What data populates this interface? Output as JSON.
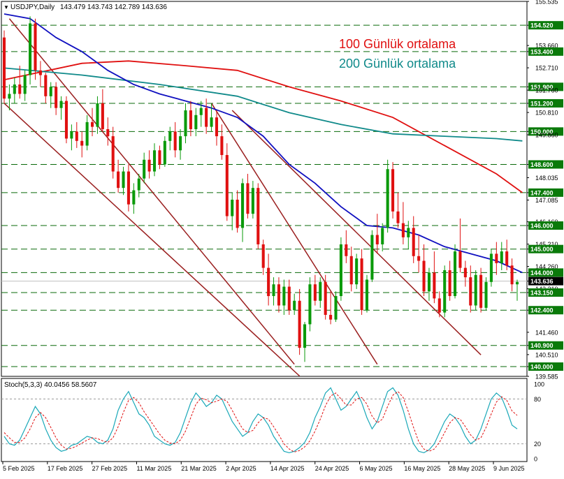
{
  "symbol_header": {
    "arrow": "▼",
    "symbol": "USDJPY,Daily",
    "ohlc": "143.479 143.743 142.789 143.636"
  },
  "legend": {
    "ma100_label": "100 Günlük ortalama",
    "ma200_label": "200 Günlük ortalama",
    "ma100_color": "#e01010",
    "ma200_color": "#108a8a"
  },
  "stoch_header": "Stoch(5,3,3) 40.0456 58.5607",
  "colors": {
    "bull": "#0a9a0a",
    "bear": "#e01010",
    "ma50": "#1010c0",
    "ma100": "#e01010",
    "ma200": "#108a8a",
    "channel": "#9a1f1f",
    "level_line": "#0a6a0a",
    "stoch_main": "#1aa8b8",
    "stoch_signal": "#e01010",
    "price_tag_bg": "#000000"
  },
  "chart_data": {
    "type": "candlestick",
    "symbol": "USDJPY",
    "timeframe": "Daily",
    "ylim": [
      139.585,
      155.535
    ],
    "y_tick_labels": [
      "155.535",
      "154.520",
      "153.660",
      "153.400",
      "152.710",
      "151.900",
      "151.760",
      "151.200",
      "150.810",
      "150.000",
      "149.860",
      "148.600",
      "148.035",
      "147.400",
      "147.085",
      "146.160",
      "146.000",
      "145.210",
      "145.000",
      "144.260",
      "144.000",
      "143.636",
      "143.310",
      "143.150",
      "142.400",
      "141.460",
      "140.900",
      "140.510",
      "140.000",
      "139.585"
    ],
    "x_tick_labels": [
      "5 Feb 2025",
      "17 Feb 2025",
      "27 Feb 2025",
      "11 Mar 2025",
      "21 Mar 2025",
      "2 Apr 2025",
      "14 Apr 2025",
      "24 Apr 2025",
      "6 May 2025",
      "16 May 2025",
      "28 May 2025",
      "9 Jun 2025"
    ],
    "horizontal_levels": [
      154.52,
      153.4,
      151.9,
      151.2,
      150.0,
      148.6,
      147.4,
      146.0,
      145.0,
      144.0,
      143.15,
      142.4,
      140.9,
      140.0
    ],
    "current_price": 143.636,
    "candles": [
      [
        154.0,
        154.3,
        151.2,
        151.4
      ],
      [
        151.4,
        152.0,
        150.9,
        151.6
      ],
      [
        151.6,
        152.3,
        151.2,
        152.0
      ],
      [
        152.0,
        152.8,
        151.4,
        151.6
      ],
      [
        151.6,
        152.6,
        151.3,
        152.4
      ],
      [
        152.4,
        154.9,
        152.0,
        154.6
      ],
      [
        154.6,
        154.8,
        152.2,
        152.6
      ],
      [
        152.6,
        153.0,
        151.9,
        152.4
      ],
      [
        152.4,
        152.5,
        151.2,
        151.5
      ],
      [
        151.5,
        152.1,
        151.0,
        151.9
      ],
      [
        151.9,
        152.1,
        150.7,
        151.0
      ],
      [
        151.0,
        151.5,
        150.5,
        151.3
      ],
      [
        151.3,
        151.5,
        149.5,
        149.7
      ],
      [
        149.7,
        150.3,
        149.2,
        150.0
      ],
      [
        150.0,
        150.4,
        149.3,
        149.6
      ],
      [
        149.6,
        150.0,
        148.9,
        149.4
      ],
      [
        149.4,
        150.7,
        149.2,
        150.4
      ],
      [
        150.4,
        151.0,
        149.8,
        150.2
      ],
      [
        150.2,
        151.5,
        149.9,
        151.2
      ],
      [
        151.2,
        151.8,
        150.0,
        150.1
      ],
      [
        150.1,
        150.6,
        149.4,
        149.8
      ],
      [
        149.8,
        150.2,
        148.0,
        148.3
      ],
      [
        148.3,
        148.8,
        147.4,
        147.6
      ],
      [
        147.6,
        148.5,
        147.3,
        148.3
      ],
      [
        148.3,
        148.6,
        146.6,
        146.9
      ],
      [
        146.9,
        147.8,
        146.5,
        147.5
      ],
      [
        147.5,
        148.2,
        147.2,
        148.0
      ],
      [
        148.0,
        149.1,
        147.8,
        148.8
      ],
      [
        148.8,
        149.2,
        148.0,
        148.3
      ],
      [
        148.3,
        149.5,
        148.1,
        149.2
      ],
      [
        149.2,
        149.4,
        148.4,
        148.6
      ],
      [
        148.6,
        149.8,
        148.5,
        149.6
      ],
      [
        149.6,
        150.2,
        149.2,
        150.0
      ],
      [
        150.0,
        150.4,
        148.9,
        149.2
      ],
      [
        149.2,
        150.1,
        148.8,
        149.8
      ],
      [
        149.8,
        151.2,
        149.5,
        150.9
      ],
      [
        150.9,
        151.3,
        149.8,
        150.1
      ],
      [
        150.1,
        151.0,
        149.8,
        150.7
      ],
      [
        150.7,
        151.3,
        150.2,
        151.0
      ],
      [
        151.0,
        151.4,
        149.9,
        150.2
      ],
      [
        150.2,
        151.2,
        150.0,
        150.6
      ],
      [
        150.6,
        150.9,
        149.4,
        149.8
      ],
      [
        149.8,
        150.3,
        148.8,
        149.0
      ],
      [
        149.0,
        149.5,
        146.2,
        146.4
      ],
      [
        146.4,
        147.4,
        145.8,
        147.1
      ],
      [
        147.1,
        147.5,
        145.7,
        145.9
      ],
      [
        145.9,
        148.0,
        145.3,
        147.8
      ],
      [
        147.8,
        148.2,
        146.3,
        146.5
      ],
      [
        146.5,
        147.9,
        146.3,
        147.6
      ],
      [
        147.6,
        147.8,
        145.0,
        145.2
      ],
      [
        145.2,
        145.4,
        143.9,
        144.2
      ],
      [
        144.2,
        144.8,
        142.6,
        143.0
      ],
      [
        143.0,
        143.8,
        142.6,
        143.5
      ],
      [
        143.5,
        143.8,
        142.3,
        142.6
      ],
      [
        142.6,
        143.7,
        142.2,
        143.4
      ],
      [
        143.4,
        143.7,
        142.2,
        142.4
      ],
      [
        142.4,
        143.1,
        142.2,
        142.8
      ],
      [
        142.8,
        143.3,
        140.5,
        140.8
      ],
      [
        140.8,
        141.9,
        140.2,
        141.8
      ],
      [
        141.8,
        143.8,
        141.5,
        143.5
      ],
      [
        143.5,
        143.9,
        142.6,
        142.8
      ],
      [
        142.8,
        143.8,
        142.5,
        143.6
      ],
      [
        143.6,
        143.9,
        142.0,
        142.2
      ],
      [
        142.2,
        143.2,
        141.8,
        142.0
      ],
      [
        142.0,
        143.2,
        141.9,
        143.0
      ],
      [
        143.0,
        145.5,
        142.8,
        145.2
      ],
      [
        145.2,
        145.8,
        144.4,
        144.7
      ],
      [
        144.7,
        145.1,
        143.2,
        143.5
      ],
      [
        143.5,
        144.8,
        143.3,
        144.6
      ],
      [
        144.6,
        145.0,
        142.2,
        142.4
      ],
      [
        142.4,
        143.9,
        142.3,
        143.7
      ],
      [
        143.7,
        145.8,
        143.6,
        145.6
      ],
      [
        145.6,
        146.5,
        144.8,
        145.2
      ],
      [
        145.2,
        146.1,
        144.9,
        145.9
      ],
      [
        145.9,
        148.8,
        145.7,
        148.4
      ],
      [
        148.4,
        148.7,
        146.3,
        146.6
      ],
      [
        146.6,
        147.4,
        145.9,
        146.1
      ],
      [
        146.1,
        147.0,
        145.2,
        145.5
      ],
      [
        145.5,
        146.2,
        145.0,
        145.9
      ],
      [
        145.9,
        146.4,
        144.4,
        144.7
      ],
      [
        144.7,
        145.6,
        144.0,
        144.5
      ],
      [
        144.5,
        145.2,
        143.0,
        143.2
      ],
      [
        143.2,
        144.2,
        142.8,
        144.0
      ],
      [
        144.0,
        144.9,
        142.7,
        142.9
      ],
      [
        142.9,
        143.2,
        142.1,
        142.3
      ],
      [
        142.3,
        144.3,
        142.1,
        144.1
      ],
      [
        144.1,
        144.5,
        142.8,
        143.0
      ],
      [
        143.0,
        145.2,
        142.9,
        144.9
      ],
      [
        144.9,
        146.3,
        144.0,
        144.2
      ],
      [
        144.2,
        144.5,
        143.4,
        143.8
      ],
      [
        143.8,
        144.3,
        142.3,
        142.6
      ],
      [
        142.6,
        144.1,
        142.4,
        143.9
      ],
      [
        143.9,
        144.2,
        142.3,
        142.5
      ],
      [
        142.5,
        143.8,
        142.4,
        143.6
      ],
      [
        143.6,
        145.0,
        143.4,
        144.8
      ],
      [
        144.8,
        145.3,
        143.9,
        144.4
      ],
      [
        144.4,
        145.3,
        144.1,
        144.9
      ],
      [
        144.9,
        145.4,
        144.1,
        144.3
      ],
      [
        144.3,
        144.6,
        143.2,
        143.5
      ],
      [
        143.5,
        143.7,
        142.8,
        143.6
      ]
    ],
    "ma_series": [
      {
        "name": "100 Günlük ortalama",
        "color": "#e01010",
        "x": [
          0,
          15,
          24,
          35,
          45,
          55,
          65,
          75,
          85,
          95,
          100
        ],
        "y": [
          152.2,
          152.9,
          153.0,
          152.8,
          152.6,
          151.9,
          151.3,
          150.6,
          149.4,
          148.2,
          147.4
        ]
      },
      {
        "name": "200 Günlük ortalama",
        "color": "#108a8a",
        "x": [
          0,
          15,
          30,
          45,
          55,
          65,
          75,
          85,
          95,
          100
        ],
        "y": [
          152.7,
          152.4,
          152.0,
          151.5,
          150.8,
          150.3,
          149.9,
          149.8,
          149.7,
          149.6
        ]
      },
      {
        "color": "#1010c0",
        "x": [
          0,
          5,
          10,
          15,
          20,
          25,
          30,
          35,
          40,
          45,
          50,
          55,
          60,
          65,
          70,
          75,
          80,
          85,
          90,
          95,
          100
        ],
        "y": [
          155.0,
          154.8,
          154.0,
          153.4,
          152.6,
          152.0,
          151.6,
          151.3,
          151.0,
          150.6,
          149.8,
          148.6,
          147.8,
          146.8,
          146.0,
          145.9,
          145.6,
          145.1,
          144.8,
          144.5,
          144.0
        ]
      }
    ],
    "channel_lines": [
      {
        "x": [
          1,
          56
        ],
        "y": [
          154.8,
          140.1
        ]
      },
      {
        "x": [
          0,
          57
        ],
        "y": [
          151.2,
          139.6
        ]
      },
      {
        "x": [
          40,
          72
        ],
        "y": [
          151.2,
          140.1
        ]
      },
      {
        "x": [
          44,
          92
        ],
        "y": [
          150.9,
          140.5
        ]
      }
    ],
    "stochastic": {
      "label": "Stoch(5,3,3)",
      "main": 40.0456,
      "signal": 58.5607,
      "levels": [
        80,
        20
      ],
      "ylim": [
        0,
        100
      ],
      "y_tick_labels": [
        "100",
        "80",
        "20",
        "0"
      ],
      "k": [
        30,
        20,
        18,
        25,
        40,
        55,
        70,
        60,
        40,
        25,
        15,
        10,
        12,
        18,
        20,
        25,
        30,
        28,
        22,
        20,
        25,
        40,
        65,
        80,
        90,
        75,
        60,
        55,
        45,
        30,
        25,
        20,
        18,
        22,
        35,
        55,
        75,
        88,
        80,
        70,
        75,
        85,
        80,
        65,
        50,
        40,
        30,
        35,
        50,
        60,
        55,
        45,
        30,
        20,
        10,
        8,
        10,
        15,
        22,
        35,
        55,
        70,
        88,
        95,
        80,
        65,
        70,
        80,
        90,
        75,
        55,
        40,
        50,
        70,
        90,
        95,
        85,
        65,
        40,
        20,
        10,
        8,
        12,
        20,
        35,
        50,
        60,
        55,
        45,
        30,
        20,
        25,
        40,
        60,
        80,
        88,
        82,
        65,
        45,
        40
      ],
      "d": [
        35,
        28,
        22,
        22,
        28,
        40,
        55,
        62,
        55,
        42,
        28,
        18,
        13,
        14,
        17,
        21,
        25,
        28,
        27,
        24,
        22,
        28,
        43,
        62,
        78,
        82,
        75,
        63,
        53,
        43,
        33,
        25,
        21,
        20,
        25,
        37,
        55,
        73,
        81,
        79,
        75,
        77,
        80,
        77,
        65,
        52,
        40,
        35,
        38,
        48,
        55,
        53,
        43,
        32,
        20,
        13,
        9,
        11,
        16,
        24,
        37,
        53,
        71,
        84,
        88,
        80,
        72,
        72,
        80,
        82,
        73,
        57,
        48,
        53,
        70,
        85,
        90,
        82,
        63,
        42,
        23,
        13,
        10,
        13,
        22,
        35,
        48,
        55,
        53,
        43,
        32,
        25,
        28,
        42,
        60,
        76,
        83,
        78,
        64,
        58
      ]
    }
  }
}
